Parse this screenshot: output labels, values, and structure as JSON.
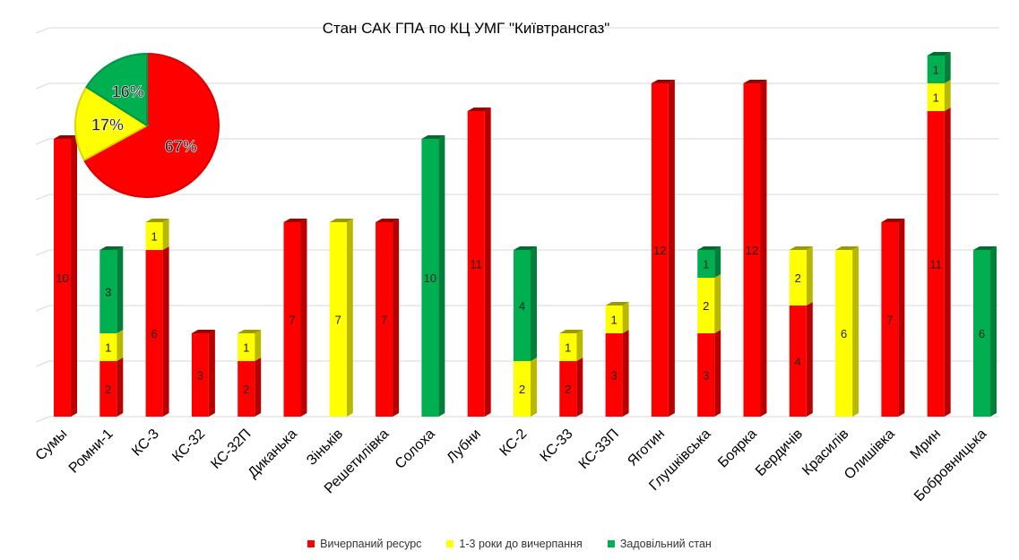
{
  "chart_data": [
    {
      "type": "bar",
      "stacked": true,
      "title": "Стан САК ГПА по КЦ УМГ \"Київтрансгаз\"",
      "categories": [
        "Сумы",
        "Ромни-1",
        "КС-3",
        "КС-32",
        "КС-32П",
        "Диканька",
        "Зіньків",
        "Решетилівка",
        "Солоха",
        "Лубни",
        "КС-2",
        "КС-33",
        "КС-33П",
        "Яготин",
        "Глушківська",
        "Боярка",
        "Бердичів",
        "Красилів",
        "Олишівка",
        "Мрин",
        "Бобровницька"
      ],
      "series": [
        {
          "name": "Вичерпаний ресурс",
          "color": "#ff0000",
          "values": [
            10,
            2,
            6,
            3,
            2,
            7,
            0,
            7,
            0,
            11,
            0,
            2,
            3,
            12,
            3,
            12,
            4,
            0,
            7,
            11,
            0
          ]
        },
        {
          "name": "1-3 роки до вичерпання",
          "color": "#ffff00",
          "values": [
            0,
            1,
            1,
            0,
            1,
            0,
            7,
            0,
            0,
            0,
            2,
            1,
            1,
            0,
            2,
            0,
            2,
            6,
            0,
            1,
            0
          ]
        },
        {
          "name": "Задовільний стан",
          "color": "#00b050",
          "values": [
            0,
            3,
            0,
            0,
            0,
            0,
            0,
            0,
            10,
            0,
            4,
            0,
            0,
            0,
            1,
            0,
            0,
            0,
            0,
            1,
            6
          ]
        }
      ],
      "ylim": [
        0,
        14
      ],
      "grid": true,
      "legend": "bottom"
    },
    {
      "type": "pie",
      "labels": [
        "Вичерпаний ресурс",
        "1-3 роки до вичерпання",
        "Задовільний стан"
      ],
      "values": [
        67,
        17,
        16
      ],
      "value_labels": [
        "67%",
        "17%",
        "16%"
      ],
      "colors": [
        "#ff0000",
        "#ffff00",
        "#00b050"
      ]
    }
  ]
}
